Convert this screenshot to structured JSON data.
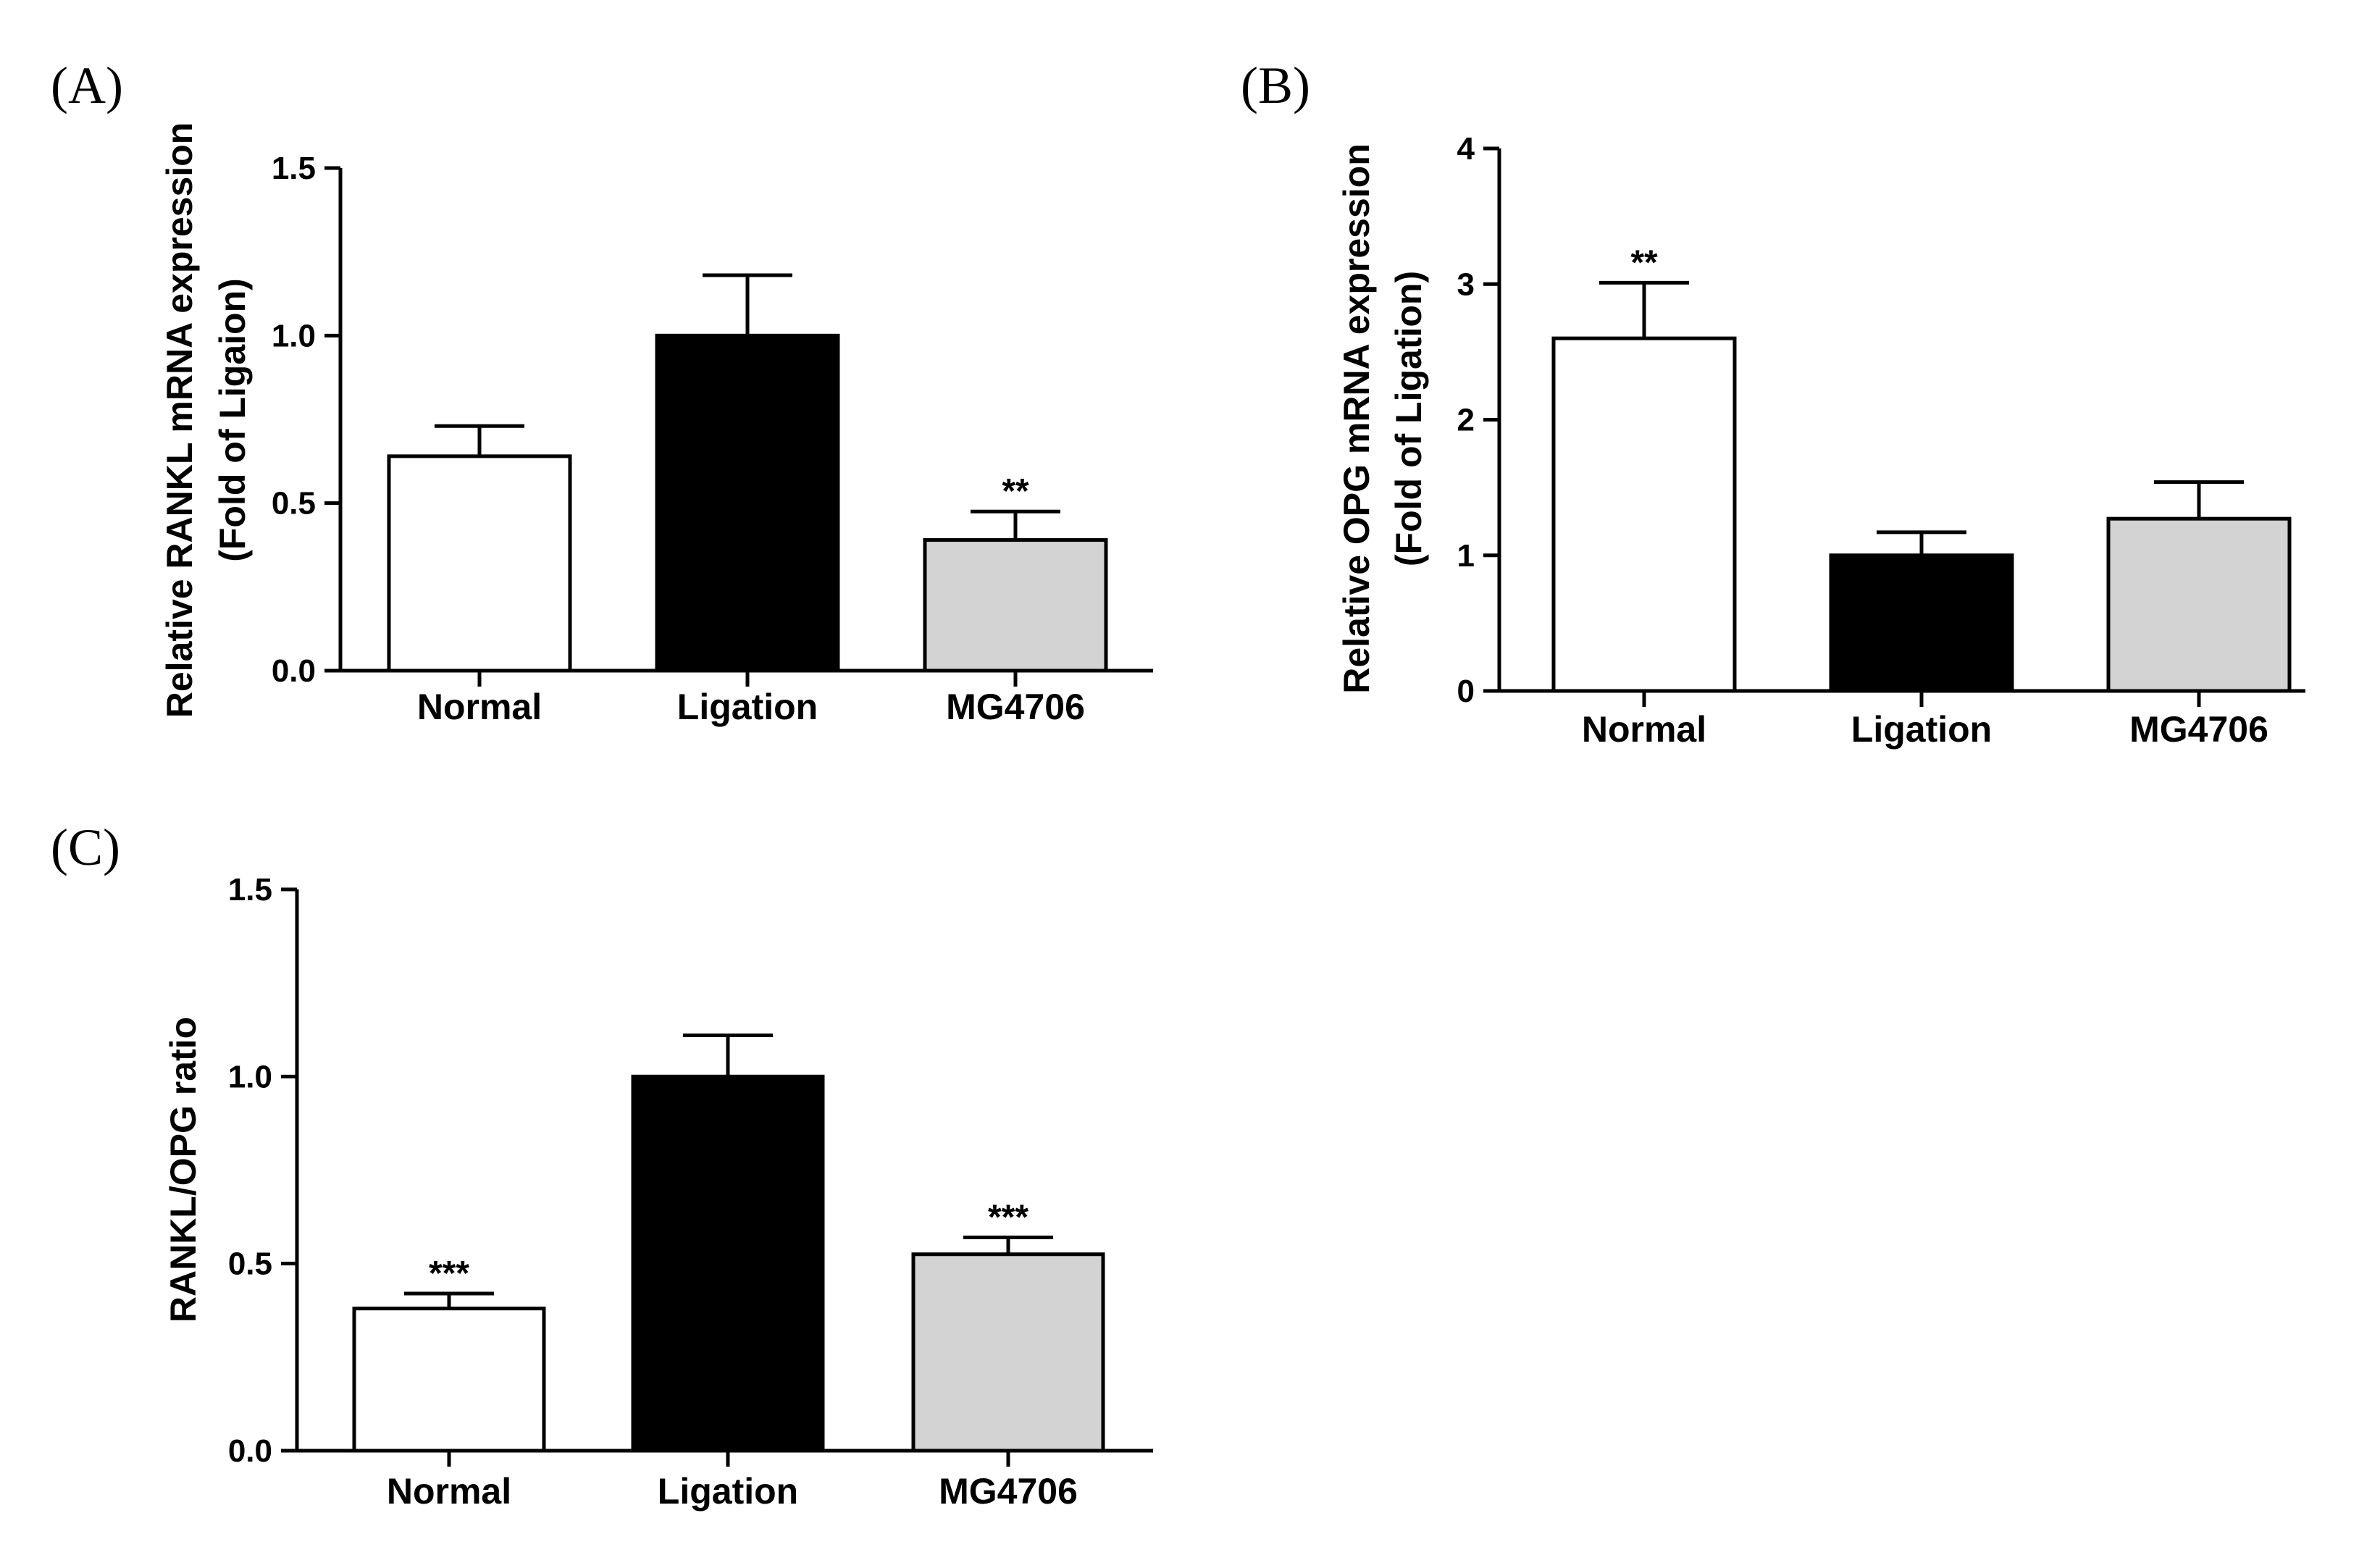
{
  "chart_data": [
    {
      "panel_label": "(A)",
      "type": "bar",
      "categories": [
        "Normal",
        "Ligation",
        "MG4706"
      ],
      "values": [
        0.64,
        1.0,
        0.39
      ],
      "errors": [
        0.09,
        0.18,
        0.085
      ],
      "significance": [
        "",
        "",
        "**"
      ],
      "bar_colors": [
        "#ffffff",
        "#000000",
        "#d3d3d3"
      ],
      "ylabel_lines": [
        "Relative RANKL mRNA expression",
        "(Fold of Ligaion)"
      ],
      "ylim": [
        0,
        1.5
      ],
      "yticks": [
        0.0,
        0.5,
        1.0,
        1.5
      ],
      "ytick_labels": [
        "0.0",
        "0.5",
        "1.0",
        "1.5"
      ],
      "grid": false
    },
    {
      "panel_label": "(B)",
      "type": "bar",
      "categories": [
        "Normal",
        "Ligation",
        "MG4706"
      ],
      "values": [
        2.6,
        1.0,
        1.27
      ],
      "errors": [
        0.41,
        0.17,
        0.27
      ],
      "significance": [
        "**",
        "",
        ""
      ],
      "bar_colors": [
        "#ffffff",
        "#000000",
        "#d3d3d3"
      ],
      "ylabel_lines": [
        "Relative OPG mRNA expression",
        "(Fold of Ligation)"
      ],
      "ylim": [
        0,
        4
      ],
      "yticks": [
        0,
        1,
        2,
        3,
        4
      ],
      "ytick_labels": [
        "0",
        "1",
        "2",
        "3",
        "4"
      ],
      "grid": false
    },
    {
      "panel_label": "(C)",
      "type": "bar",
      "categories": [
        "Normal",
        "Ligation",
        "MG4706"
      ],
      "values": [
        0.38,
        1.0,
        0.525
      ],
      "errors": [
        0.04,
        0.11,
        0.045
      ],
      "significance": [
        "***",
        "",
        "***"
      ],
      "bar_colors": [
        "#ffffff",
        "#000000",
        "#d3d3d3"
      ],
      "ylabel_lines": [
        "RANKL/OPG ratio"
      ],
      "ylim": [
        0,
        1.5
      ],
      "yticks": [
        0.0,
        0.5,
        1.0,
        1.5
      ],
      "ytick_labels": [
        "0.0",
        "0.5",
        "1.0",
        "1.5"
      ],
      "grid": false
    }
  ]
}
